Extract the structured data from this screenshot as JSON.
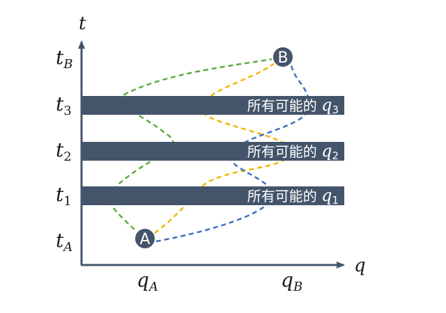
{
  "axes": {
    "y_label": "t",
    "x_label": "q",
    "y_ticks": [
      {
        "base": "t",
        "sub": "B"
      },
      {
        "base": "t",
        "sub": "3"
      },
      {
        "base": "t",
        "sub": "2"
      },
      {
        "base": "t",
        "sub": "1"
      },
      {
        "base": "t",
        "sub": "A"
      }
    ],
    "x_ticks": [
      {
        "base": "q",
        "sub": "A"
      },
      {
        "base": "q",
        "sub": "B"
      }
    ]
  },
  "bands": [
    {
      "text": "所有可能的 ",
      "var": "q",
      "sub": "3"
    },
    {
      "text": "所有可能的 ",
      "var": "q",
      "sub": "2"
    },
    {
      "text": "所有可能的 ",
      "var": "q",
      "sub": "1"
    }
  ],
  "nodes": {
    "start": "A",
    "end": "B"
  },
  "paths": [
    {
      "name": "green",
      "color": "#5aab3a"
    },
    {
      "name": "yellow",
      "color": "#f4b400"
    },
    {
      "name": "blue",
      "color": "#3f6fc4"
    }
  ],
  "colors": {
    "axis": "#44546a",
    "band": "#44546a",
    "node": "#44546a"
  }
}
